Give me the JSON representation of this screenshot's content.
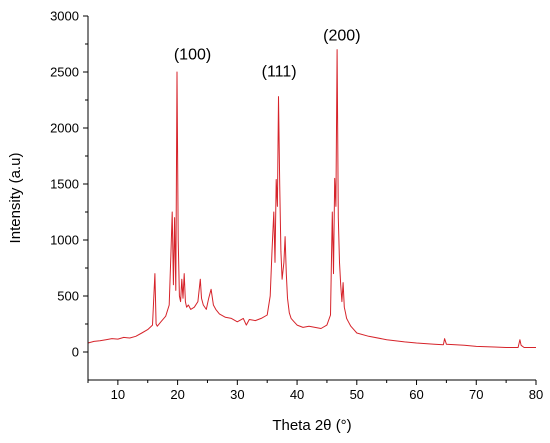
{
  "chart_data": {
    "type": "line",
    "title": "",
    "xlabel": "Theta 2θ (°)",
    "ylabel": "Intensity (a.u)",
    "xlim": [
      5,
      80
    ],
    "ylim": [
      -250,
      3000
    ],
    "xticks": [
      10,
      20,
      30,
      40,
      50,
      60,
      70,
      80
    ],
    "yticks": [
      0,
      500,
      1000,
      1500,
      2000,
      2500,
      3000
    ],
    "grid": false,
    "series": [
      {
        "name": "",
        "color": "#d6232a",
        "x": [
          5,
          6,
          7,
          8,
          9,
          10,
          11,
          12,
          13,
          14,
          15,
          15.8,
          16.2,
          16.4,
          16.6,
          17.2,
          18,
          18.6,
          18.9,
          19.1,
          19.3,
          19.5,
          19.7,
          19.9,
          20.1,
          20.3,
          20.5,
          20.7,
          20.9,
          21.1,
          21.3,
          21.5,
          21.8,
          22.2,
          22.8,
          23.4,
          23.8,
          24.0,
          24.3,
          24.8,
          25.2,
          25.6,
          26.0,
          26.4,
          27,
          28,
          29,
          30,
          31,
          31.5,
          32,
          33,
          34,
          35,
          35.5,
          35.8,
          36.1,
          36.3,
          36.5,
          36.7,
          36.9,
          37.1,
          37.3,
          37.5,
          37.8,
          38.0,
          38.2,
          38.4,
          38.7,
          39.0,
          39.5,
          40,
          41,
          42,
          43,
          44,
          45,
          45.6,
          45.9,
          46.1,
          46.3,
          46.5,
          46.7,
          46.9,
          47.1,
          47.3,
          47.5,
          47.7,
          47.9,
          48.1,
          48.3,
          48.6,
          49,
          49.5,
          50,
          52,
          55,
          58,
          60,
          63,
          64.5,
          64.7,
          65,
          68,
          70,
          73,
          75,
          77,
          77.3,
          77.5,
          78,
          80
        ],
        "values": [
          80,
          95,
          100,
          110,
          120,
          115,
          130,
          125,
          140,
          170,
          200,
          240,
          700,
          250,
          230,
          270,
          320,
          420,
          900,
          1250,
          600,
          1200,
          550,
          2500,
          1000,
          500,
          450,
          650,
          480,
          700,
          450,
          400,
          420,
          380,
          400,
          450,
          650,
          480,
          420,
          380,
          480,
          560,
          420,
          380,
          340,
          310,
          300,
          270,
          300,
          240,
          290,
          280,
          300,
          330,
          500,
          900,
          1250,
          800,
          1540,
          1300,
          2280,
          1500,
          900,
          650,
          800,
          1030,
          700,
          480,
          350,
          300,
          270,
          240,
          220,
          230,
          220,
          210,
          240,
          330,
          1250,
          700,
          1550,
          1300,
          2700,
          1200,
          800,
          600,
          450,
          620,
          400,
          350,
          300,
          270,
          230,
          200,
          170,
          140,
          110,
          90,
          80,
          70,
          65,
          120,
          70,
          60,
          50,
          45,
          40,
          40,
          110,
          60,
          40,
          40
        ]
      }
    ],
    "annotations": [
      {
        "text": "(100)",
        "x": 22.5,
        "y": 2610
      },
      {
        "text": "(111)",
        "x": 37.0,
        "y": 2460
      },
      {
        "text": "(200)",
        "x": 47.5,
        "y": 2780
      }
    ]
  }
}
